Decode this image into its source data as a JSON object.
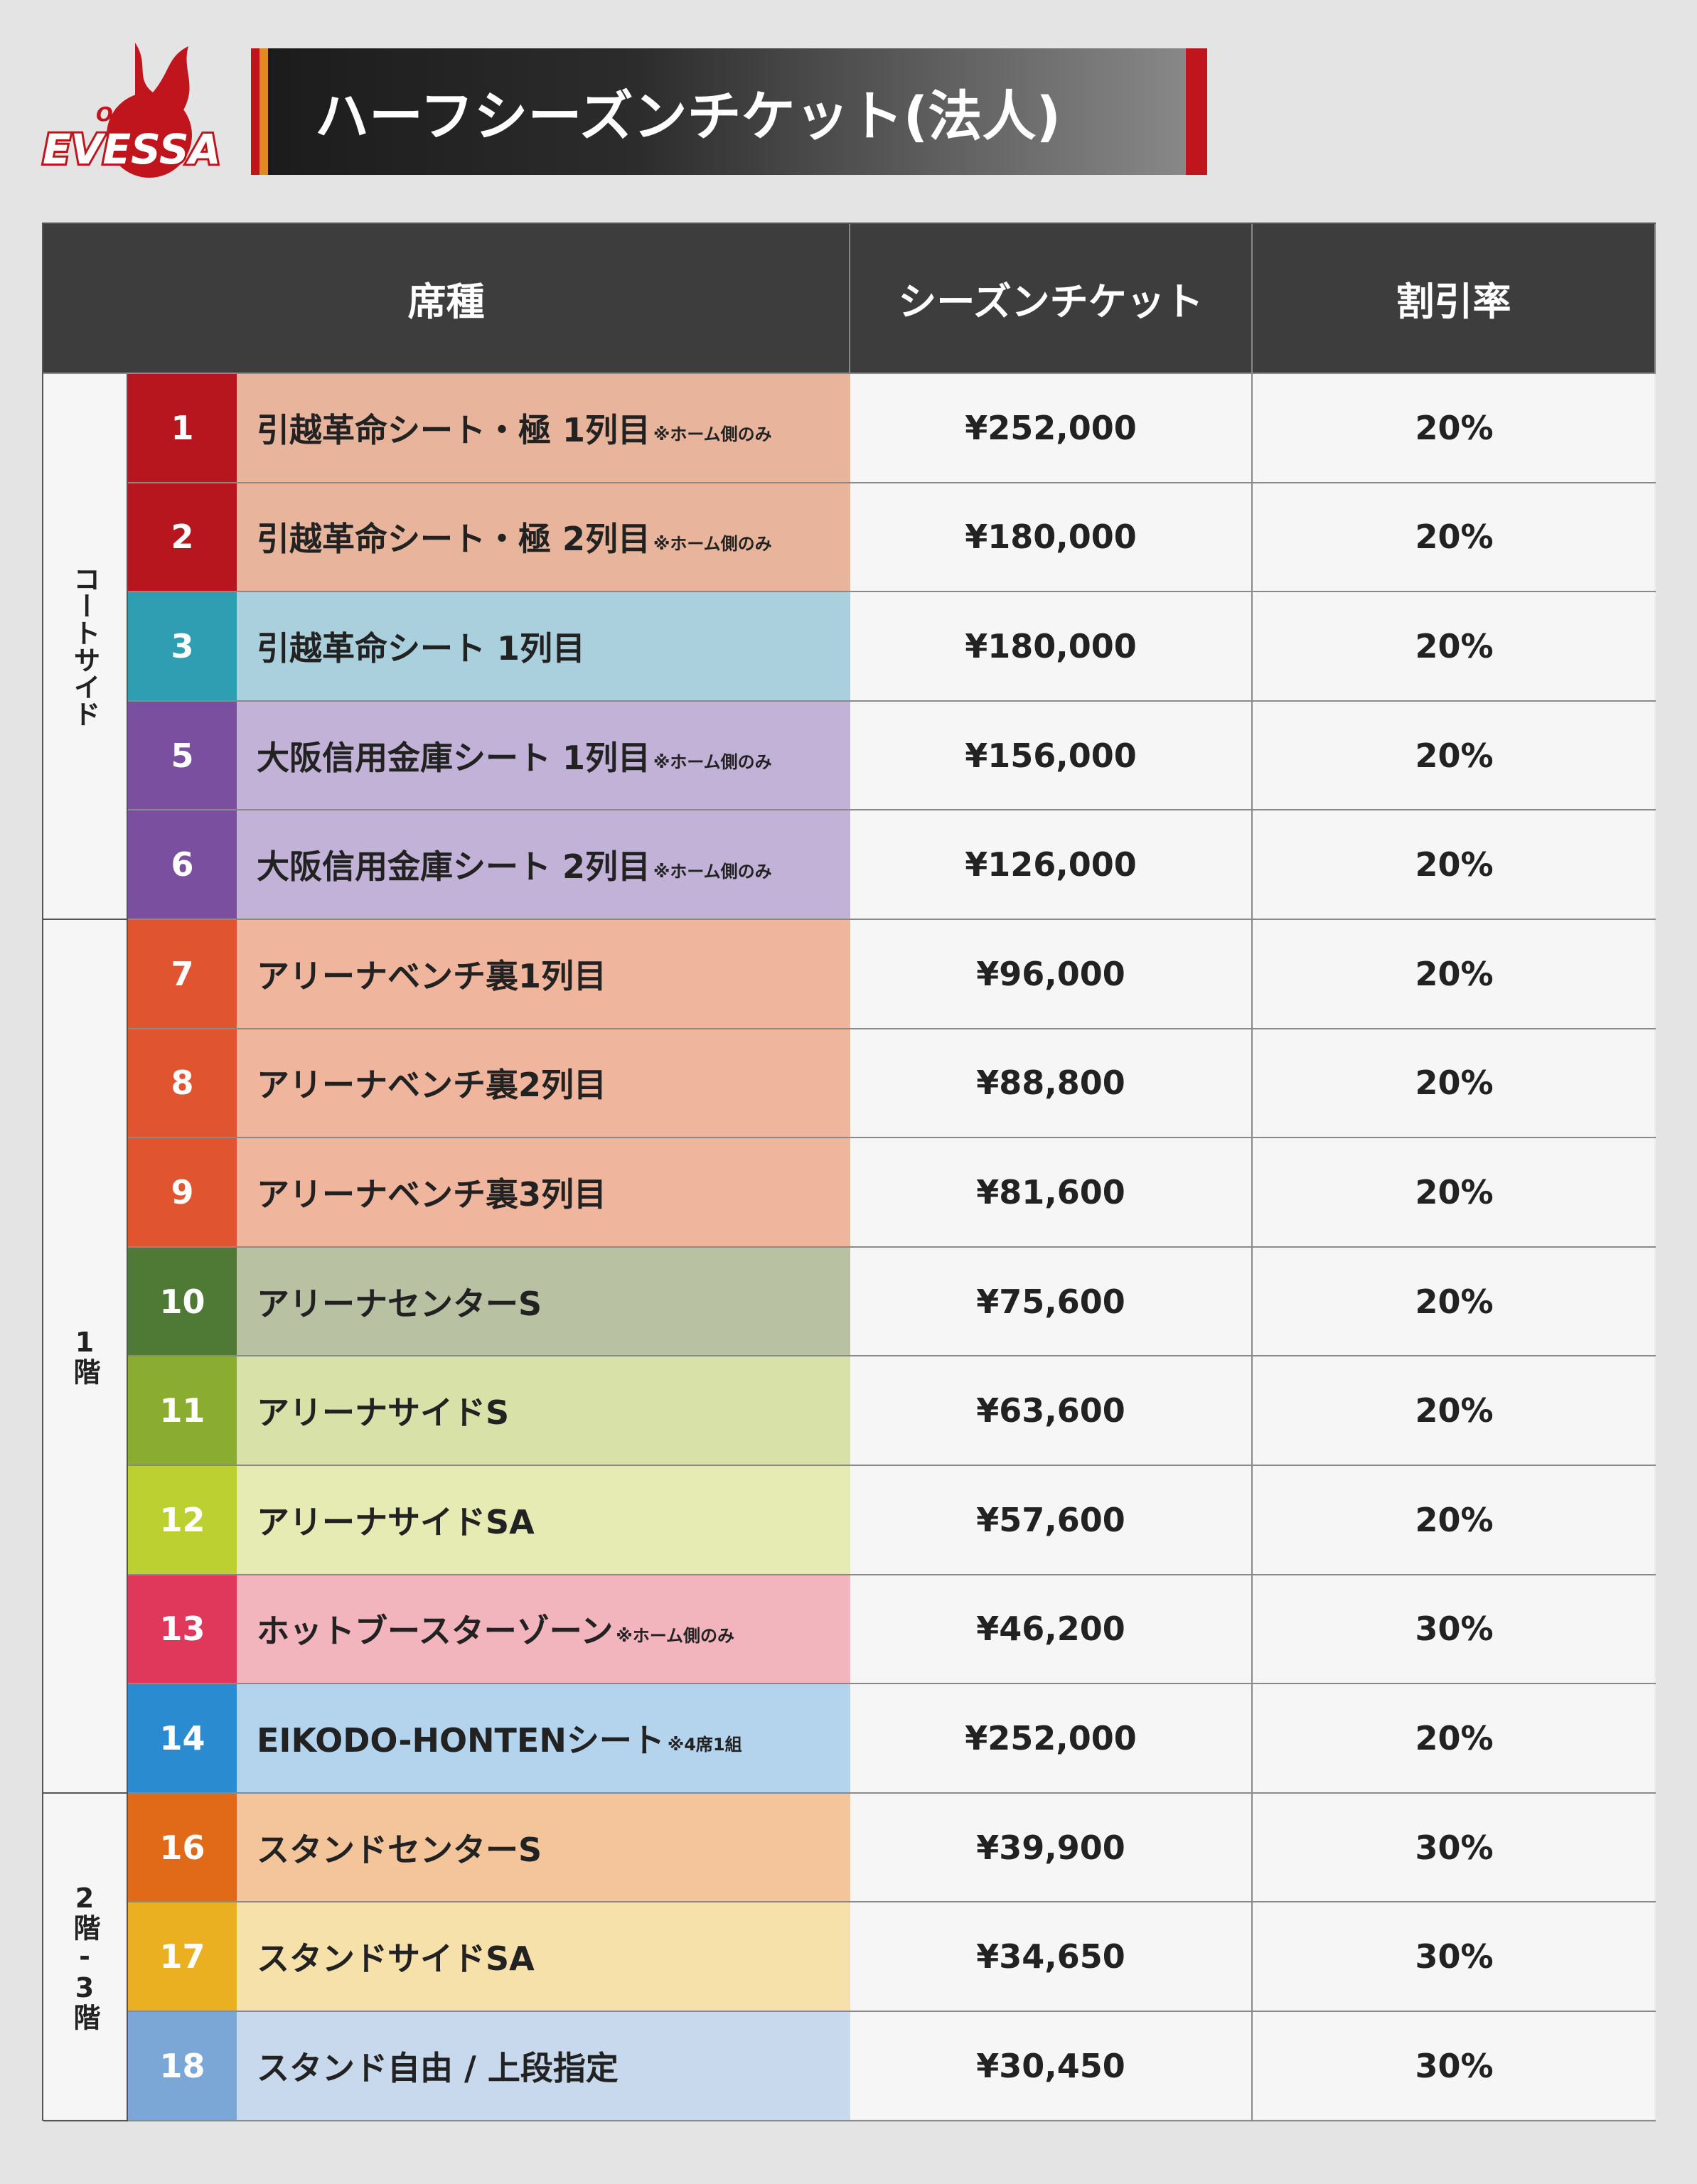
{
  "logo": {
    "top": "OSAKA",
    "name": "EVESSA"
  },
  "header": {
    "title": "ハーフシーズンチケット(法人)"
  },
  "table": {
    "headers": [
      "席種",
      "シーズンチケット",
      "割引率"
    ],
    "groups": [
      {
        "label": "コートサイド",
        "rows": [
          {
            "no": "1",
            "name": "引越革命シート・極 1列目",
            "note": "※ホーム側のみ",
            "price": "¥252,000",
            "discount": "20%",
            "color": "#b8161f",
            "tint": "#e8b59c"
          },
          {
            "no": "2",
            "name": "引越革命シート・極 2列目",
            "note": "※ホーム側のみ",
            "price": "¥180,000",
            "discount": "20%",
            "color": "#b8161f",
            "tint": "#e8b59c"
          },
          {
            "no": "3",
            "name": "引越革命シート 1列目",
            "price": "¥180,000",
            "discount": "20%",
            "color": "#2f9db2",
            "tint": "#a9d0dc"
          },
          {
            "no": "5",
            "name": "大阪信用金庫シート 1列目",
            "note": "※ホーム側のみ",
            "price": "¥156,000",
            "discount": "20%",
            "color": "#7a4f9f",
            "tint": "#c3b2d8"
          },
          {
            "no": "6",
            "name": "大阪信用金庫シート 2列目",
            "note": "※ホーム側のみ",
            "price": "¥126,000",
            "discount": "20%",
            "color": "#7a4f9f",
            "tint": "#c3b2d8"
          }
        ]
      },
      {
        "label": "1階",
        "rows": [
          {
            "no": "7",
            "name": "アリーナベンチ裏1列目",
            "price": "¥96,000",
            "discount": "20%",
            "color": "#e0552f",
            "tint": "#f0b59d"
          },
          {
            "no": "8",
            "name": "アリーナベンチ裏2列目",
            "price": "¥88,800",
            "discount": "20%",
            "color": "#e0552f",
            "tint": "#f0b59d"
          },
          {
            "no": "9",
            "name": "アリーナベンチ裏3列目",
            "price": "¥81,600",
            "discount": "20%",
            "color": "#e0552f",
            "tint": "#f0b59d"
          },
          {
            "no": "10",
            "name": "アリーナセンターS",
            "price": "¥75,600",
            "discount": "20%",
            "color": "#4e7a35",
            "tint": "#b8c1a2"
          },
          {
            "no": "11",
            "name": "アリーナサイドS",
            "price": "¥63,600",
            "discount": "20%",
            "color": "#8aac30",
            "tint": "#d8e2a8"
          },
          {
            "no": "12",
            "name": "アリーナサイドSA",
            "price": "¥57,600",
            "discount": "20%",
            "color": "#bdd031",
            "tint": "#e5ebb2"
          },
          {
            "no": "13",
            "name": "ホットブースターゾーン",
            "note": "※ホーム側のみ",
            "price": "¥46,200",
            "discount": "30%",
            "color": "#e0385a",
            "tint": "#f2b4bd"
          },
          {
            "no": "14",
            "name": "EIKODO-HONTENシート",
            "note": "※4席1組",
            "price": "¥252,000",
            "discount": "20%",
            "color": "#2a8bd0",
            "tint": "#b4d3ec"
          }
        ]
      },
      {
        "label": "2階-3階",
        "rows": [
          {
            "no": "16",
            "name": "スタンドセンターS",
            "price": "¥39,900",
            "discount": "30%",
            "color": "#e06a18",
            "tint": "#f4c59b"
          },
          {
            "no": "17",
            "name": "スタンドサイドSA",
            "price": "¥34,650",
            "discount": "30%",
            "color": "#eab021",
            "tint": "#f7e1ab"
          },
          {
            "no": "18",
            "name": "スタンド自由 / 上段指定",
            "price": "¥30,450",
            "discount": "30%",
            "color": "#7aa7d6",
            "tint": "#c8d9ee"
          }
        ]
      }
    ]
  }
}
